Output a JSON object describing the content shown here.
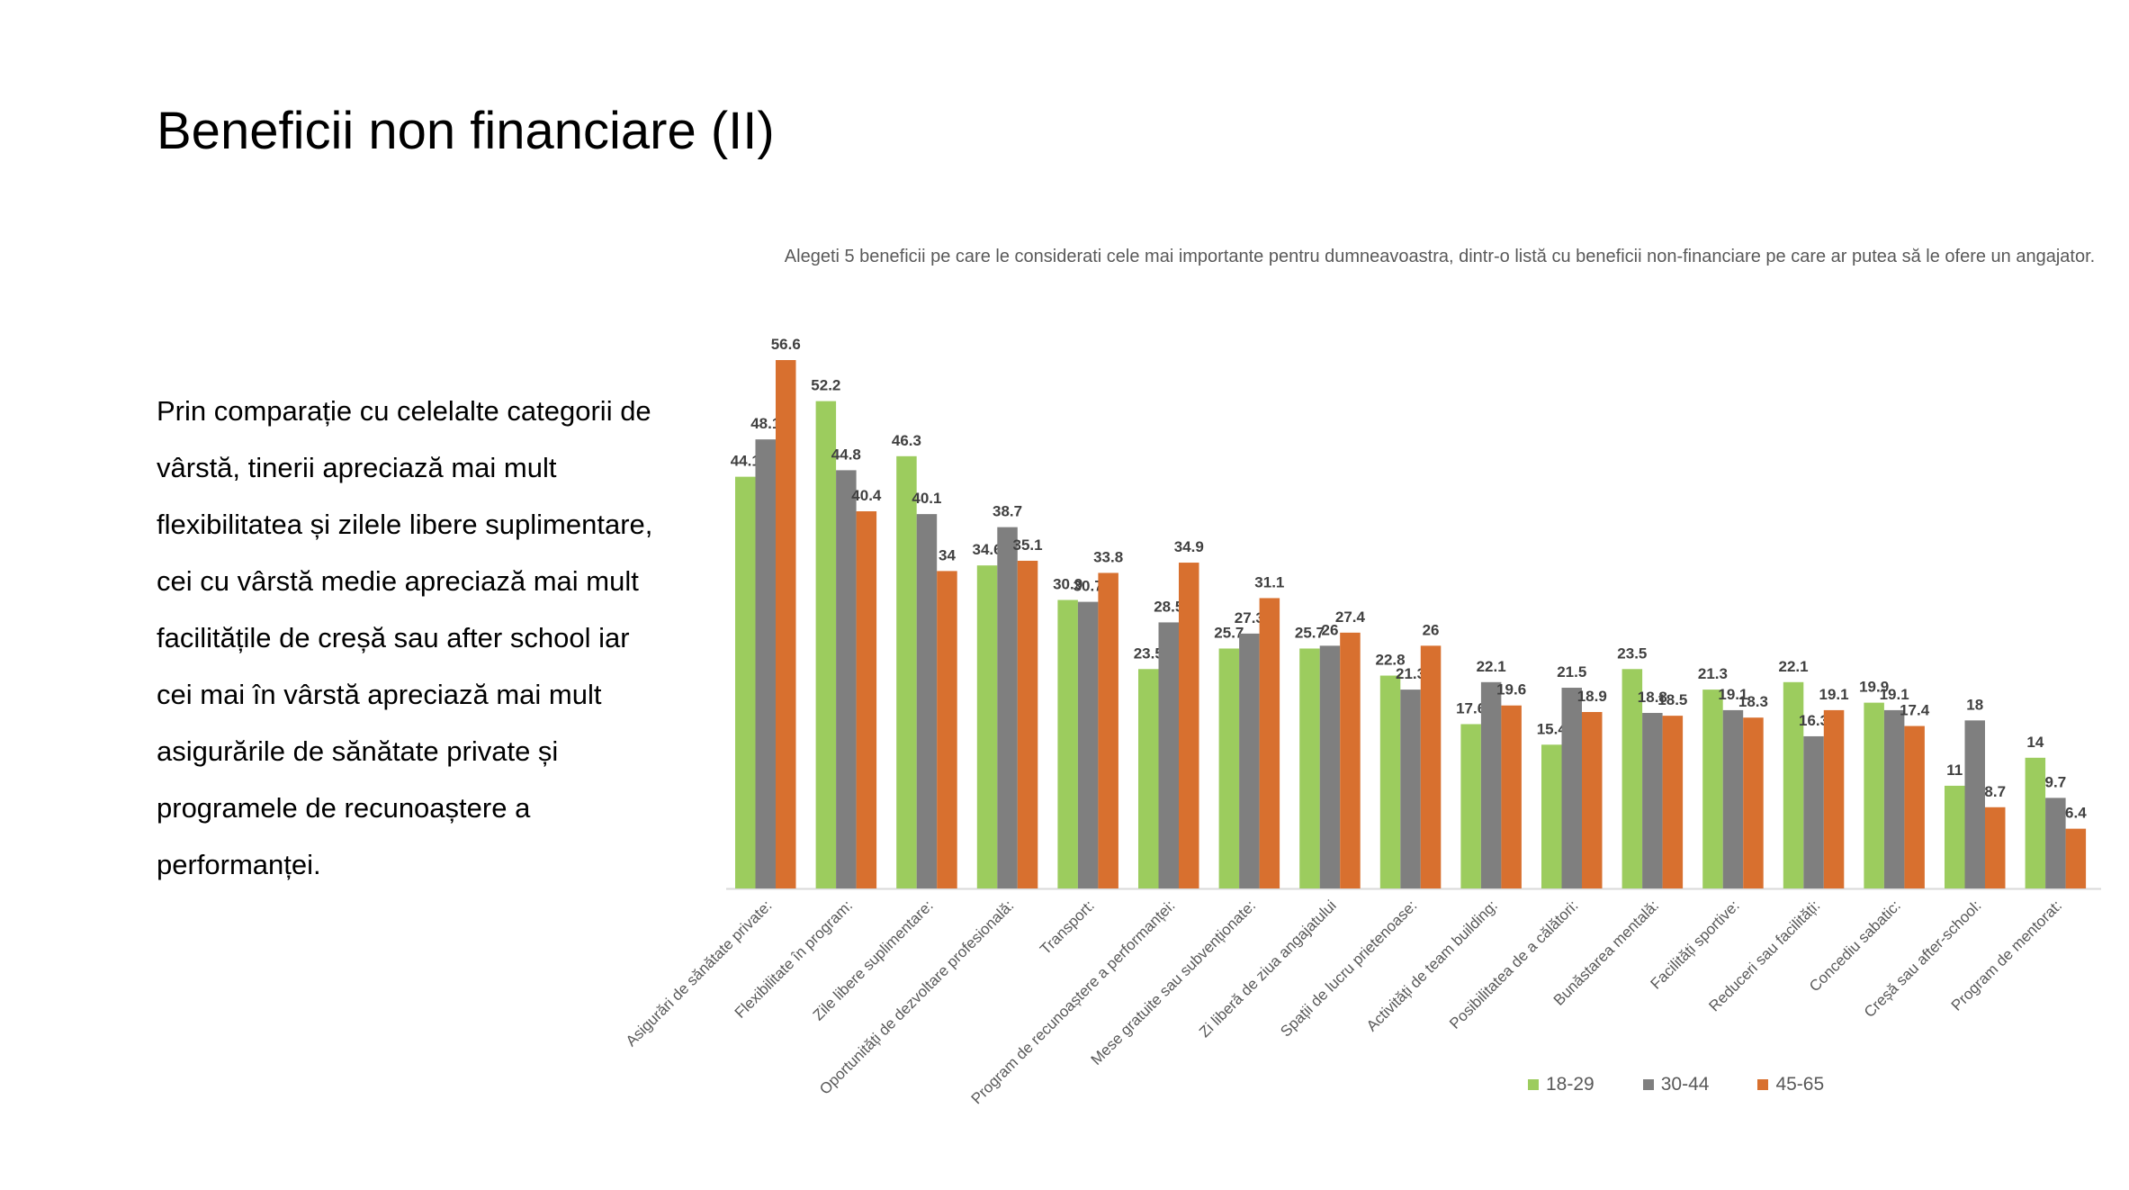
{
  "slide": {
    "title": "Beneficii non financiare (II)",
    "body_text": "Prin comparație cu celelalte categorii de vârstă, tinerii apreciază mai mult flexibilitatea și zilele libere suplimentare, cei cu vârstă medie apreciază mai mult facilitățile de creșă sau after school iar cei mai în vârstă apreciază mai mult asigurările de sănătate private și programele de recunoaștere a performanței."
  },
  "chart_data": {
    "type": "bar",
    "title": "Alegeti 5 beneficii pe care le considerati cele mai importante pentru dumneavoastra, dintr-o listă cu beneficii non-financiare pe care ar putea să le ofere un angajator.",
    "xlabel": "",
    "ylabel": "",
    "ylim": [
      0,
      60
    ],
    "grid": false,
    "legend_position": "bottom",
    "categories": [
      "Asigurări de sănătate private:",
      "Flexibilitate în program:",
      "Zile libere suplimentare:",
      "Oportunități de dezvoltare profesională:",
      "Transport:",
      "Program de recunoaștere a performanței:",
      "Mese gratuite sau subvenționate:",
      "Zi liberă de ziua angajatului",
      "Spații de lucru prietenoase:",
      "Activități de team building:",
      "Posibilitatea de a călători:",
      "Bunăstarea mentală:",
      "Facilități sportive:",
      "Reduceri sau facilități:",
      "Concediu sabatic:",
      "Creșă sau after-school:",
      "Program de mentorat:"
    ],
    "series": [
      {
        "name": "18-29",
        "color": "#9ccc5e",
        "values": [
          44.1,
          52.2,
          46.3,
          34.6,
          30.9,
          23.5,
          25.7,
          25.7,
          22.8,
          17.6,
          15.4,
          23.5,
          21.3,
          22.1,
          19.9,
          11,
          14
        ]
      },
      {
        "name": "30-44",
        "color": "#7f7f7f",
        "values": [
          48.1,
          44.8,
          40.1,
          38.7,
          30.7,
          28.5,
          27.3,
          26,
          21.3,
          22.1,
          21.5,
          18.8,
          19.1,
          16.3,
          19.1,
          18,
          9.7
        ]
      },
      {
        "name": "45-65",
        "color": "#d8702f",
        "values": [
          56.6,
          40.4,
          34,
          35.1,
          33.8,
          34.9,
          31.1,
          27.4,
          26,
          19.6,
          18.9,
          18.5,
          18.3,
          19.1,
          17.4,
          8.7,
          6.4
        ]
      }
    ]
  }
}
